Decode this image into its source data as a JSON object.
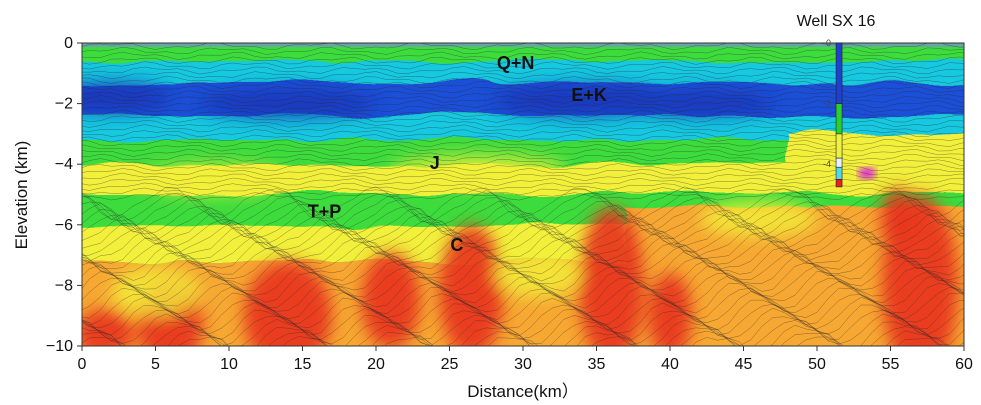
{
  "chart_data": {
    "type": "heatmap",
    "xlabel": "Distance(km）",
    "ylabel": "Elevation (km)",
    "xlim": [
      0,
      60
    ],
    "ylim": [
      -10,
      0
    ],
    "x_ticks": [
      "0",
      "5",
      "10",
      "15",
      "20",
      "25",
      "30",
      "35",
      "40",
      "45",
      "50",
      "55",
      "60"
    ],
    "y_ticks": [
      "0",
      "−2",
      "−4",
      "−6",
      "−8",
      "−10"
    ],
    "colors": {
      "low": "#1f4fd8",
      "mid_low": "#16c8e0",
      "mid": "#3ddc3d",
      "mid_high": "#f2f03a",
      "high": "#f7a832",
      "max": "#e8351e",
      "contour": "#2a2a2a"
    },
    "units": [
      {
        "label": "Q+N",
        "x": 29.5,
        "y": -0.7
      },
      {
        "label": "E+K",
        "x": 34.5,
        "y": -1.75
      },
      {
        "label": "J",
        "x": 24,
        "y": -4.0
      },
      {
        "label": "T+P",
        "x": 16.5,
        "y": -5.6
      },
      {
        "label": "C",
        "x": 25.5,
        "y": -6.7
      }
    ],
    "well": {
      "title": "Well SX 16",
      "x": 51.5,
      "depth_ticks": [
        "0",
        "-2",
        "-4"
      ],
      "segments": [
        {
          "top": 0,
          "bottom": -2.0,
          "color": "#1f3fd0"
        },
        {
          "top": -2.0,
          "bottom": -3.0,
          "color": "#2bd02b"
        },
        {
          "top": -3.0,
          "bottom": -3.8,
          "color": "#f0f040"
        },
        {
          "top": -3.8,
          "bottom": -4.1,
          "color": "#e8f0ff"
        },
        {
          "top": -4.1,
          "bottom": -4.5,
          "color": "#50d8f0"
        },
        {
          "top": -4.5,
          "bottom": -4.75,
          "color": "#e82020"
        }
      ]
    }
  }
}
